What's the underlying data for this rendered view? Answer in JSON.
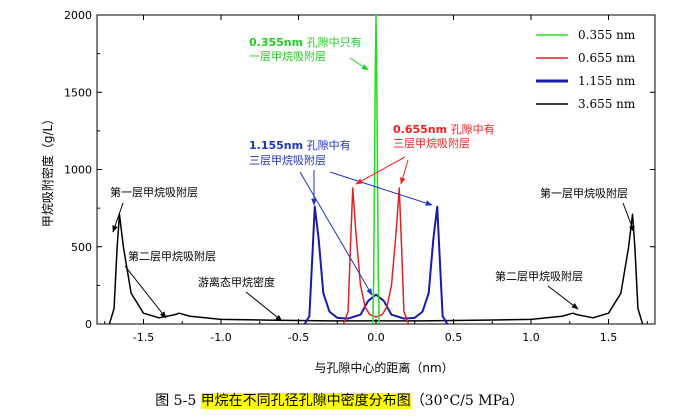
{
  "chart_data": {
    "type": "line",
    "title": "",
    "xlabel": "与孔隙中心的距离（nm）",
    "ylabel": "甲烷吸附密度（g/L）",
    "xlim": [
      -1.8,
      1.8
    ],
    "ylim": [
      0,
      2000
    ],
    "xticks": [
      "-1.5",
      "-1.0",
      "-0.5",
      "0.0",
      "0.5",
      "1.0",
      "1.5"
    ],
    "yticks": [
      "0",
      "500",
      "1000",
      "1500",
      "2000"
    ],
    "legend_position": "top-right",
    "series": [
      {
        "name": "0.355 nm",
        "color": "#22dd22",
        "points": [
          [
            -0.02,
            0
          ],
          [
            -0.015,
            300
          ],
          [
            -0.01,
            900
          ],
          [
            -0.005,
            1600
          ],
          [
            0.0,
            2000
          ],
          [
            0.005,
            1600
          ],
          [
            0.01,
            900
          ],
          [
            0.015,
            300
          ],
          [
            0.02,
            0
          ]
        ]
      },
      {
        "name": "0.655 nm",
        "color": "#dd2222",
        "points": [
          [
            -0.21,
            0
          ],
          [
            -0.18,
            80
          ],
          [
            -0.165,
            500
          ],
          [
            -0.15,
            880
          ],
          [
            -0.13,
            600
          ],
          [
            -0.1,
            250
          ],
          [
            -0.07,
            110
          ],
          [
            -0.04,
            60
          ],
          [
            0.0,
            45
          ],
          [
            0.04,
            60
          ],
          [
            0.07,
            110
          ],
          [
            0.1,
            250
          ],
          [
            0.13,
            600
          ],
          [
            0.15,
            880
          ],
          [
            0.165,
            500
          ],
          [
            0.18,
            80
          ],
          [
            0.21,
            0
          ]
        ]
      },
      {
        "name": "1.155 nm",
        "color": "#1a1aaa",
        "points": [
          [
            -0.46,
            0
          ],
          [
            -0.43,
            50
          ],
          [
            -0.41,
            450
          ],
          [
            -0.395,
            760
          ],
          [
            -0.37,
            550
          ],
          [
            -0.34,
            200
          ],
          [
            -0.3,
            80
          ],
          [
            -0.25,
            40
          ],
          [
            -0.18,
            35
          ],
          [
            -0.1,
            60
          ],
          [
            -0.05,
            150
          ],
          [
            0.0,
            190
          ],
          [
            0.05,
            150
          ],
          [
            0.1,
            60
          ],
          [
            0.18,
            35
          ],
          [
            0.25,
            40
          ],
          [
            0.3,
            80
          ],
          [
            0.34,
            200
          ],
          [
            0.37,
            550
          ],
          [
            0.395,
            760
          ],
          [
            0.41,
            450
          ],
          [
            0.43,
            50
          ],
          [
            0.46,
            0
          ]
        ]
      },
      {
        "name": "3.655 nm",
        "color": "#000000",
        "points": [
          [
            -1.72,
            0
          ],
          [
            -1.69,
            100
          ],
          [
            -1.67,
            500
          ],
          [
            -1.655,
            710
          ],
          [
            -1.63,
            500
          ],
          [
            -1.58,
            200
          ],
          [
            -1.5,
            70
          ],
          [
            -1.4,
            40
          ],
          [
            -1.3,
            60
          ],
          [
            -1.27,
            70
          ],
          [
            -1.2,
            50
          ],
          [
            -1.0,
            30
          ],
          [
            -0.7,
            25
          ],
          [
            -0.3,
            20
          ],
          [
            0.0,
            20
          ],
          [
            0.3,
            20
          ],
          [
            0.7,
            25
          ],
          [
            1.0,
            30
          ],
          [
            1.2,
            50
          ],
          [
            1.27,
            70
          ],
          [
            1.3,
            60
          ],
          [
            1.4,
            40
          ],
          [
            1.5,
            70
          ],
          [
            1.58,
            200
          ],
          [
            1.63,
            500
          ],
          [
            1.655,
            710
          ],
          [
            1.67,
            500
          ],
          [
            1.69,
            100
          ],
          [
            1.72,
            0
          ]
        ]
      }
    ],
    "annotations": [
      {
        "id": "green-note",
        "color": "#22cc22",
        "lines": [
          [
            "0.355nm",
            " 孔隙中只有"
          ],
          [
            "一层甲烷吸附层"
          ]
        ]
      },
      {
        "id": "red-note",
        "color": "#ee2222",
        "lines": [
          [
            "0.655nm",
            " 孔隙中有"
          ],
          [
            "三层甲烷吸附层"
          ]
        ]
      },
      {
        "id": "blue-note",
        "color": "#2233bb",
        "lines": [
          [
            "1.155nm",
            " 孔隙中有"
          ],
          [
            "三层甲烷吸附层"
          ]
        ]
      },
      {
        "id": "first-layer-left",
        "color": "#000000",
        "lines": [
          [
            "第一层甲烷吸附层"
          ]
        ]
      },
      {
        "id": "second-layer-left",
        "color": "#000000",
        "lines": [
          [
            "第二层甲烷吸附层"
          ]
        ]
      },
      {
        "id": "free-state",
        "color": "#000000",
        "lines": [
          [
            "游离态甲烷密度"
          ]
        ]
      },
      {
        "id": "first-layer-right",
        "color": "#000000",
        "lines": [
          [
            "第一层甲烷吸附层"
          ]
        ]
      },
      {
        "id": "second-layer-right",
        "color": "#000000",
        "lines": [
          [
            "第二层甲烷吸附层"
          ]
        ]
      }
    ]
  },
  "caption": {
    "prefix": "图 5-5 ",
    "highlight": "甲烷在不同孔径孔隙中密度分布图",
    "suffix": "（30°C/5 MPa）"
  }
}
